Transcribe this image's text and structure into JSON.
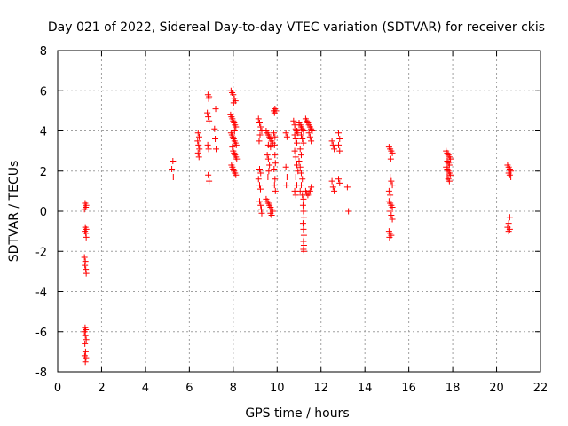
{
  "chart_data": {
    "type": "scatter",
    "title": "Day 021 of 2022, Sidereal Day-to-day VTEC variation (SDTVAR) for receiver ckis",
    "xlabel": "GPS time / hours",
    "ylabel": "SDTVAR / TECUs",
    "xlim": [
      0,
      22
    ],
    "ylim": [
      -8,
      8
    ],
    "xticks": [
      0,
      2,
      4,
      6,
      8,
      10,
      12,
      14,
      16,
      18,
      20,
      22
    ],
    "yticks": [
      -8,
      -6,
      -4,
      -2,
      0,
      2,
      4,
      6,
      8
    ],
    "xtick_labels": [
      "0",
      "2",
      "4",
      "6",
      "8",
      "10",
      "12",
      "14",
      "16",
      "18",
      "20",
      "22"
    ],
    "ytick_labels": [
      "-8",
      "-6",
      "-4",
      "-2",
      "0",
      "2",
      "4",
      "6",
      "8"
    ],
    "grid": true,
    "marker": "+",
    "color": "#ff0000",
    "series": [
      {
        "name": "SDTVAR",
        "points": [
          [
            1.25,
            0.4
          ],
          [
            1.3,
            0.3
          ],
          [
            1.28,
            0.2
          ],
          [
            1.22,
            0.1
          ],
          [
            1.26,
            -0.8
          ],
          [
            1.3,
            -0.9
          ],
          [
            1.24,
            -1.0
          ],
          [
            1.28,
            -1.1
          ],
          [
            1.3,
            -1.3
          ],
          [
            1.22,
            -2.3
          ],
          [
            1.26,
            -2.5
          ],
          [
            1.24,
            -2.7
          ],
          [
            1.28,
            -2.9
          ],
          [
            1.3,
            -3.1
          ],
          [
            1.25,
            -5.8
          ],
          [
            1.28,
            -5.9
          ],
          [
            1.22,
            -6.0
          ],
          [
            1.26,
            -6.2
          ],
          [
            1.3,
            -6.4
          ],
          [
            1.24,
            -6.6
          ],
          [
            1.27,
            -7.0
          ],
          [
            1.23,
            -7.2
          ],
          [
            1.29,
            -7.3
          ],
          [
            1.26,
            -7.5
          ],
          [
            5.25,
            2.5
          ],
          [
            5.2,
            2.1
          ],
          [
            5.27,
            1.7
          ],
          [
            6.4,
            3.9
          ],
          [
            6.45,
            3.7
          ],
          [
            6.38,
            3.5
          ],
          [
            6.42,
            3.3
          ],
          [
            6.46,
            3.1
          ],
          [
            6.4,
            2.9
          ],
          [
            6.44,
            2.7
          ],
          [
            6.85,
            5.8
          ],
          [
            6.9,
            5.7
          ],
          [
            6.88,
            5.6
          ],
          [
            6.82,
            4.9
          ],
          [
            6.86,
            4.7
          ],
          [
            6.9,
            4.5
          ],
          [
            6.84,
            3.3
          ],
          [
            6.88,
            3.1
          ],
          [
            6.86,
            1.8
          ],
          [
            6.9,
            1.5
          ],
          [
            7.2,
            5.1
          ],
          [
            7.15,
            4.1
          ],
          [
            7.18,
            3.6
          ],
          [
            7.22,
            3.1
          ],
          [
            7.9,
            6.0
          ],
          [
            7.95,
            5.9
          ],
          [
            8.0,
            5.8
          ],
          [
            8.05,
            5.6
          ],
          [
            8.1,
            5.5
          ],
          [
            8.02,
            5.4
          ],
          [
            7.88,
            4.8
          ],
          [
            7.92,
            4.7
          ],
          [
            7.96,
            4.6
          ],
          [
            8.0,
            4.5
          ],
          [
            8.04,
            4.4
          ],
          [
            8.08,
            4.3
          ],
          [
            8.12,
            4.2
          ],
          [
            8.06,
            4.0
          ],
          [
            7.9,
            3.9
          ],
          [
            7.94,
            3.8
          ],
          [
            7.98,
            3.7
          ],
          [
            8.02,
            3.6
          ],
          [
            8.06,
            3.5
          ],
          [
            8.1,
            3.4
          ],
          [
            8.14,
            3.3
          ],
          [
            7.96,
            3.2
          ],
          [
            8.0,
            3.0
          ],
          [
            8.04,
            2.9
          ],
          [
            8.08,
            2.8
          ],
          [
            8.12,
            2.7
          ],
          [
            8.16,
            2.6
          ],
          [
            7.92,
            2.3
          ],
          [
            7.96,
            2.2
          ],
          [
            8.0,
            2.1
          ],
          [
            8.04,
            2.0
          ],
          [
            8.08,
            1.9
          ],
          [
            8.12,
            1.8
          ],
          [
            9.15,
            4.6
          ],
          [
            9.2,
            4.4
          ],
          [
            9.25,
            4.2
          ],
          [
            9.3,
            4.0
          ],
          [
            9.22,
            3.8
          ],
          [
            9.18,
            3.5
          ],
          [
            9.2,
            2.1
          ],
          [
            9.25,
            1.9
          ],
          [
            9.15,
            1.6
          ],
          [
            9.2,
            1.3
          ],
          [
            9.24,
            1.1
          ],
          [
            9.2,
            0.5
          ],
          [
            9.25,
            0.3
          ],
          [
            9.28,
            0.1
          ],
          [
            9.3,
            -0.1
          ],
          [
            9.5,
            4.0
          ],
          [
            9.55,
            3.9
          ],
          [
            9.6,
            3.8
          ],
          [
            9.65,
            3.7
          ],
          [
            9.7,
            3.6
          ],
          [
            9.75,
            3.5
          ],
          [
            9.8,
            3.4
          ],
          [
            9.6,
            3.3
          ],
          [
            9.7,
            3.2
          ],
          [
            9.55,
            2.8
          ],
          [
            9.6,
            2.6
          ],
          [
            9.65,
            2.3
          ],
          [
            9.62,
            2.0
          ],
          [
            9.58,
            1.7
          ],
          [
            9.5,
            0.6
          ],
          [
            9.55,
            0.5
          ],
          [
            9.6,
            0.4
          ],
          [
            9.65,
            0.3
          ],
          [
            9.7,
            0.2
          ],
          [
            9.75,
            0.1
          ],
          [
            9.8,
            0.0
          ],
          [
            9.7,
            -0.1
          ],
          [
            9.75,
            -0.2
          ],
          [
            9.85,
            5.0
          ],
          [
            9.9,
            5.1
          ],
          [
            9.95,
            5.0
          ],
          [
            9.88,
            4.9
          ],
          [
            9.85,
            3.9
          ],
          [
            9.9,
            3.7
          ],
          [
            9.88,
            3.3
          ],
          [
            9.9,
            2.8
          ],
          [
            9.92,
            2.4
          ],
          [
            9.86,
            2.1
          ],
          [
            9.9,
            1.6
          ],
          [
            9.88,
            1.3
          ],
          [
            9.92,
            1.0
          ],
          [
            10.4,
            3.9
          ],
          [
            10.45,
            3.7
          ],
          [
            10.4,
            2.2
          ],
          [
            10.45,
            1.7
          ],
          [
            10.42,
            1.3
          ],
          [
            10.75,
            4.5
          ],
          [
            10.8,
            4.3
          ],
          [
            10.85,
            4.1
          ],
          [
            10.9,
            4.0
          ],
          [
            10.95,
            3.9
          ],
          [
            10.8,
            3.8
          ],
          [
            10.85,
            3.6
          ],
          [
            10.9,
            3.4
          ],
          [
            10.8,
            3.0
          ],
          [
            10.85,
            2.7
          ],
          [
            10.9,
            2.3
          ],
          [
            10.95,
            2.0
          ],
          [
            10.85,
            1.7
          ],
          [
            10.9,
            1.3
          ],
          [
            10.8,
            1.0
          ],
          [
            10.85,
            0.8
          ],
          [
            11.0,
            4.4
          ],
          [
            11.05,
            4.3
          ],
          [
            11.1,
            4.2
          ],
          [
            11.15,
            4.1
          ],
          [
            11.2,
            4.0
          ],
          [
            11.1,
            3.8
          ],
          [
            11.15,
            3.6
          ],
          [
            11.2,
            3.4
          ],
          [
            11.05,
            3.1
          ],
          [
            11.1,
            2.8
          ],
          [
            11.0,
            2.5
          ],
          [
            11.05,
            2.2
          ],
          [
            11.1,
            1.9
          ],
          [
            11.15,
            1.6
          ],
          [
            11.1,
            1.3
          ],
          [
            11.05,
            1.0
          ],
          [
            11.15,
            0.8
          ],
          [
            11.2,
            0.6
          ],
          [
            11.18,
            0.3
          ],
          [
            11.2,
            0.0
          ],
          [
            11.22,
            -0.3
          ],
          [
            11.18,
            -0.6
          ],
          [
            11.2,
            -0.9
          ],
          [
            11.22,
            -1.2
          ],
          [
            11.2,
            -1.5
          ],
          [
            11.22,
            -1.7
          ],
          [
            11.2,
            -1.9
          ],
          [
            11.22,
            -2.0
          ],
          [
            11.3,
            4.6
          ],
          [
            11.35,
            4.5
          ],
          [
            11.4,
            4.4
          ],
          [
            11.45,
            4.3
          ],
          [
            11.5,
            4.2
          ],
          [
            11.55,
            4.1
          ],
          [
            11.6,
            4.0
          ],
          [
            11.45,
            3.9
          ],
          [
            11.5,
            3.7
          ],
          [
            11.55,
            3.5
          ],
          [
            11.3,
            1.0
          ],
          [
            11.35,
            0.9
          ],
          [
            11.4,
            0.8
          ],
          [
            11.45,
            0.9
          ],
          [
            11.5,
            1.0
          ],
          [
            11.55,
            1.2
          ],
          [
            12.5,
            3.5
          ],
          [
            12.55,
            3.3
          ],
          [
            12.6,
            3.1
          ],
          [
            12.5,
            1.5
          ],
          [
            12.55,
            1.2
          ],
          [
            12.6,
            1.0
          ],
          [
            12.8,
            3.9
          ],
          [
            12.85,
            3.6
          ],
          [
            12.8,
            3.3
          ],
          [
            12.85,
            3.0
          ],
          [
            12.8,
            1.6
          ],
          [
            12.85,
            1.4
          ],
          [
            13.2,
            1.2
          ],
          [
            13.25,
            0.0
          ],
          [
            15.1,
            3.2
          ],
          [
            15.15,
            3.1
          ],
          [
            15.2,
            3.0
          ],
          [
            15.25,
            2.9
          ],
          [
            15.18,
            2.6
          ],
          [
            15.15,
            1.7
          ],
          [
            15.2,
            1.5
          ],
          [
            15.25,
            1.3
          ],
          [
            15.1,
            1.0
          ],
          [
            15.15,
            0.8
          ],
          [
            15.1,
            0.5
          ],
          [
            15.15,
            0.4
          ],
          [
            15.2,
            0.3
          ],
          [
            15.25,
            0.2
          ],
          [
            15.15,
            0.0
          ],
          [
            15.2,
            -0.2
          ],
          [
            15.25,
            -0.4
          ],
          [
            15.1,
            -1.0
          ],
          [
            15.15,
            -1.1
          ],
          [
            15.2,
            -1.2
          ],
          [
            15.12,
            -1.3
          ],
          [
            17.7,
            3.0
          ],
          [
            17.75,
            2.9
          ],
          [
            17.8,
            2.8
          ],
          [
            17.85,
            2.7
          ],
          [
            17.9,
            2.6
          ],
          [
            17.75,
            2.5
          ],
          [
            17.8,
            2.4
          ],
          [
            17.85,
            2.3
          ],
          [
            17.7,
            2.2
          ],
          [
            17.75,
            2.1
          ],
          [
            17.8,
            2.0
          ],
          [
            17.85,
            1.9
          ],
          [
            17.9,
            1.8
          ],
          [
            17.75,
            1.7
          ],
          [
            17.8,
            1.6
          ],
          [
            17.85,
            1.5
          ],
          [
            20.5,
            2.3
          ],
          [
            20.55,
            2.2
          ],
          [
            20.6,
            2.1
          ],
          [
            20.65,
            2.0
          ],
          [
            20.55,
            1.9
          ],
          [
            20.6,
            1.8
          ],
          [
            20.65,
            1.7
          ],
          [
            20.6,
            -0.3
          ],
          [
            20.55,
            -0.6
          ],
          [
            20.5,
            -0.8
          ],
          [
            20.6,
            -0.9
          ],
          [
            20.55,
            -1.0
          ]
        ]
      }
    ]
  }
}
